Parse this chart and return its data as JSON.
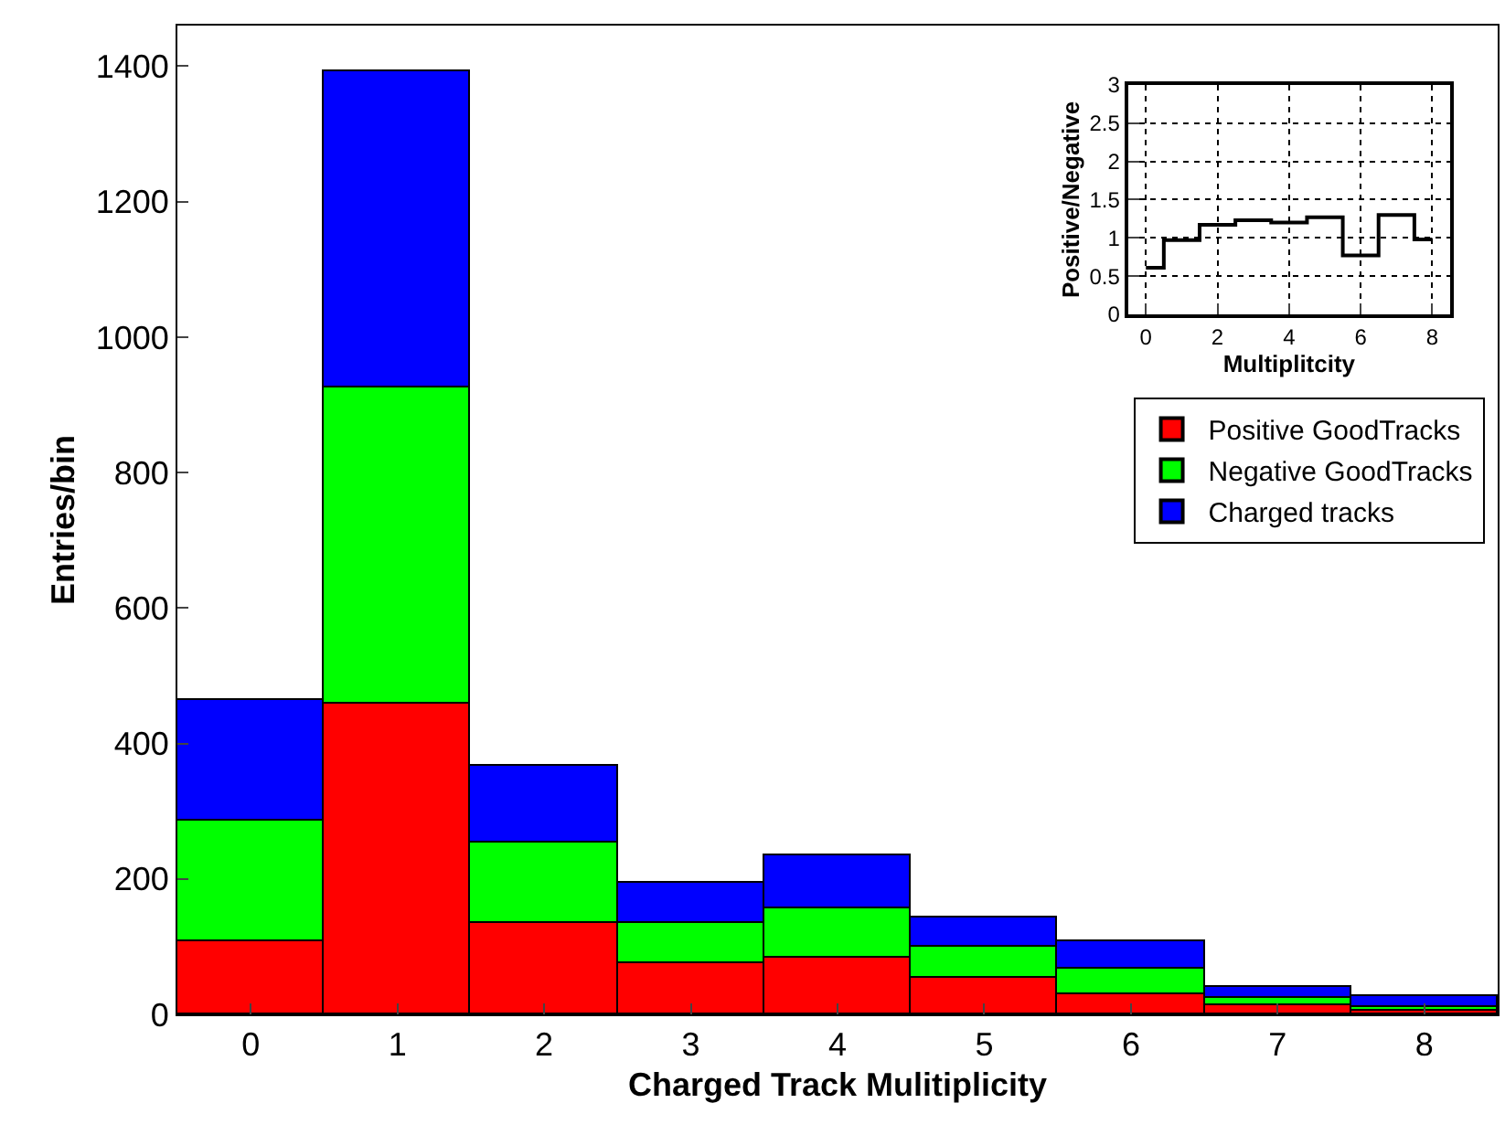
{
  "chart_data": [
    {
      "type": "bar",
      "stacked": true,
      "xlabel": "Charged Track Mulitiplicity",
      "ylabel": "Entries/bin",
      "x": [
        0,
        1,
        2,
        3,
        4,
        5,
        6,
        7,
        8
      ],
      "xlim": [
        -0.5,
        8.5
      ],
      "xticks": [
        0,
        1,
        2,
        3,
        4,
        5,
        6,
        7,
        8
      ],
      "ylim": [
        0,
        1460
      ],
      "yticks": [
        0,
        200,
        400,
        600,
        800,
        1000,
        1200,
        1400
      ],
      "legend": "right",
      "grid": false,
      "series": [
        {
          "name": "Positive GoodTracks",
          "color": "#ff0000",
          "values": [
            109,
            458,
            136,
            75,
            85,
            53,
            29,
            14,
            6
          ]
        },
        {
          "name": "Negative GoodTracks",
          "color": "#00ff00",
          "values": [
            178,
            468,
            117,
            60,
            72,
            46,
            39,
            10,
            6
          ]
        },
        {
          "name": "Charged tracks",
          "color": "#0000ff",
          "values": [
            176,
            466,
            113,
            60,
            77,
            44,
            41,
            16,
            14
          ]
        }
      ]
    },
    {
      "type": "step",
      "xlabel": "Multiplitcity",
      "ylabel": "Positive/Negative",
      "x": [
        0,
        1,
        2,
        3,
        4,
        5,
        6,
        7,
        8
      ],
      "xlim": [
        -0.5,
        8.5
      ],
      "xticks": [
        0,
        2,
        4,
        6,
        8
      ],
      "ylim": [
        0,
        3
      ],
      "yticks": [
        0,
        0.5,
        1,
        1.5,
        2,
        2.5,
        3
      ],
      "grid": true,
      "legend": false,
      "series": [
        {
          "color": "#000000",
          "values": [
            0.61,
            0.97,
            1.17,
            1.23,
            1.2,
            1.27,
            0.77,
            1.3,
            0.98
          ]
        }
      ]
    }
  ]
}
